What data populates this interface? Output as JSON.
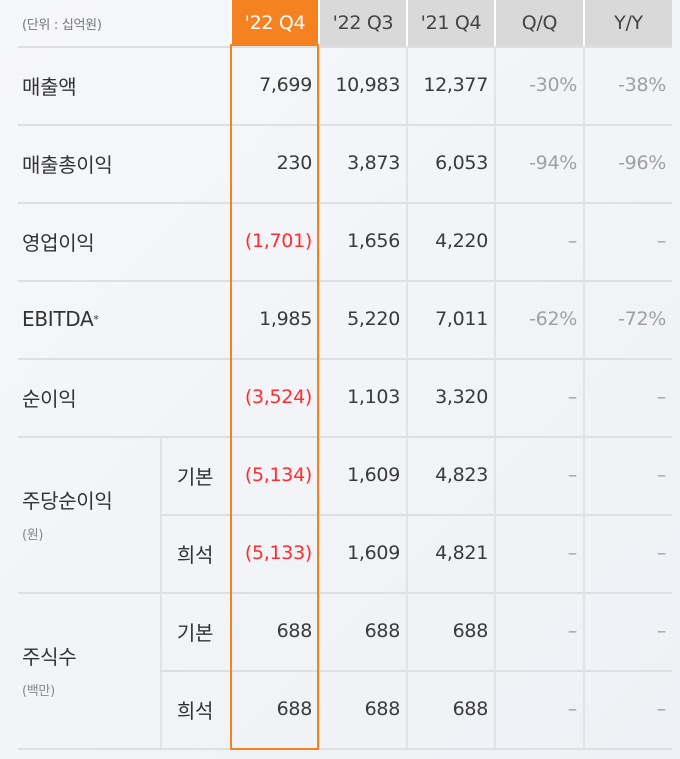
{
  "unit_label": "(단위 : 십억원)",
  "columns": [
    "'22 Q4",
    "'22 Q3",
    "'21 Q4",
    "Q/Q",
    "Y/Y"
  ],
  "highlight_color": "#f58220",
  "negative_color": "#ff2d2d",
  "rows": [
    {
      "label": "매출액",
      "values": [
        "7,699",
        "10,983",
        "12,377",
        "-30%",
        "-38%"
      ]
    },
    {
      "label": "매출총이익",
      "values": [
        "230",
        "3,873",
        "6,053",
        "-94%",
        "-96%"
      ]
    },
    {
      "label": "영업이익",
      "values": [
        "(1,701)",
        "1,656",
        "4,220",
        "–",
        "–"
      ]
    },
    {
      "label": "EBITDA",
      "footnote_mark": "*",
      "values": [
        "1,985",
        "5,220",
        "7,011",
        "-62%",
        "-72%"
      ]
    },
    {
      "label": "순이익",
      "values": [
        "(3,524)",
        "1,103",
        "3,320",
        "–",
        "–"
      ]
    }
  ],
  "groups": [
    {
      "label": "주당순이익",
      "unit": "(원)",
      "rows": [
        {
          "label": "기본",
          "values": [
            "(5,134)",
            "1,609",
            "4,823",
            "–",
            "–"
          ]
        },
        {
          "label": "희석",
          "values": [
            "(5,133)",
            "1,609",
            "4,821",
            "–",
            "–"
          ]
        }
      ]
    },
    {
      "label": "주식수",
      "unit": "(백만)",
      "rows": [
        {
          "label": "기본",
          "values": [
            "688",
            "688",
            "688",
            "–",
            "–"
          ]
        },
        {
          "label": "희석",
          "values": [
            "688",
            "688",
            "688",
            "–",
            "–"
          ]
        }
      ]
    }
  ]
}
